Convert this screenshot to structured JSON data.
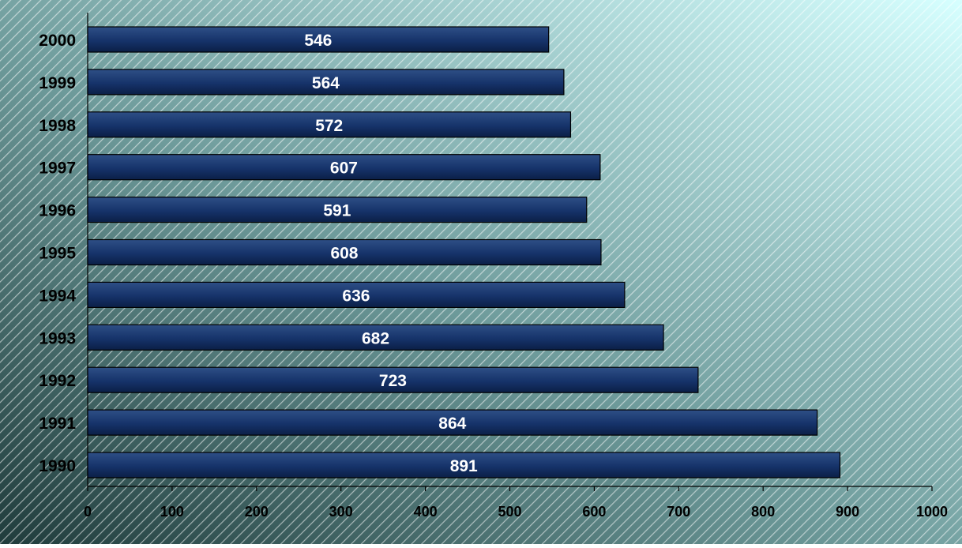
{
  "chart_data": {
    "type": "bar",
    "orientation": "horizontal",
    "categories": [
      "2000",
      "1999",
      "1998",
      "1997",
      "1996",
      "1995",
      "1994",
      "1993",
      "1992",
      "1991",
      "1990"
    ],
    "values": [
      546,
      564,
      572,
      607,
      591,
      608,
      636,
      682,
      723,
      864,
      891
    ],
    "data_labels": [
      "546",
      "564",
      "572",
      "607",
      "591",
      "608",
      "636",
      "682",
      "723",
      "864",
      "891"
    ],
    "x_ticks": [
      "0",
      "100",
      "200",
      "300",
      "400",
      "500",
      "600",
      "700",
      "800",
      "900",
      "1000"
    ],
    "xlim": [
      0,
      1000
    ],
    "title": "",
    "xlabel": "",
    "ylabel": "",
    "grid": false,
    "legend": "none",
    "colors": {
      "bar_fill_top": "#2e4f86",
      "bar_fill_mid": "#16336a",
      "bar_fill_bottom": "#0b1f46",
      "bar_edge": "#000000",
      "label_inside": "#ffffff",
      "axis_text": "#000000",
      "background_dark": "#203c3c",
      "background_mid": "#6d9a9a",
      "background_light": "#d6ffff",
      "hatch": "#ffffff"
    }
  }
}
